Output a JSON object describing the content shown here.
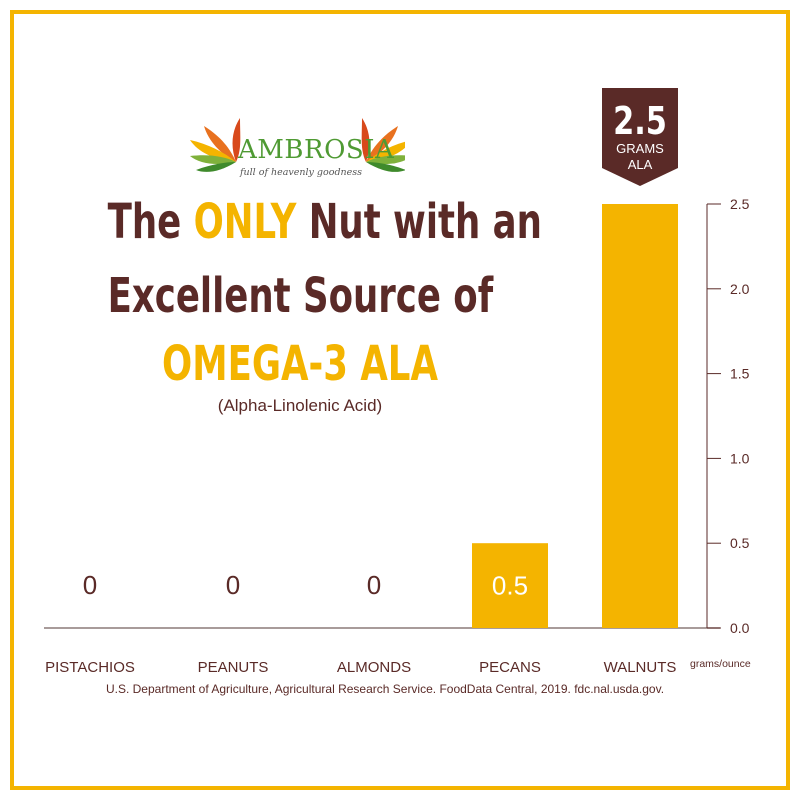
{
  "brand": {
    "name": "AMBROSIA",
    "tagline": "full of heavenly goodness"
  },
  "headline": {
    "pre": "The ",
    "highlight": "ONLY",
    "post": " Nut with an",
    "line2": "Excellent Source of",
    "line3": "OMEGA-3 ALA",
    "subtitle": "(Alpha-Linolenic Acid)"
  },
  "callout": {
    "value": "2.5",
    "line1": "GRAMS",
    "line2": "ALA"
  },
  "source": "U.S. Department of Agriculture, Agricultural Research Service. FoodData Central, 2019. fdc.nal.usda.gov.",
  "colors": {
    "brown": "#5a2a27",
    "gold": "#f4b400",
    "green": "#4f9a33",
    "white": "#ffffff"
  },
  "chart_data": {
    "type": "bar",
    "categories": [
      "PISTACHIOS",
      "PEANUTS",
      "ALMONDS",
      "PECANS",
      "WALNUTS"
    ],
    "values": [
      0,
      0,
      0,
      0.5,
      2.5
    ],
    "value_labels": [
      "0",
      "0",
      "0",
      "0.5",
      ""
    ],
    "y_ticks": [
      "2.5",
      "2.0",
      "1.5",
      "1.0",
      "0.5",
      "0.0"
    ],
    "y_tick_values": [
      2.5,
      2.0,
      1.5,
      1.0,
      0.5,
      0.0
    ],
    "unit_label": "grams/ounce",
    "ylim": [
      0,
      2.5
    ],
    "axis_side": "right",
    "grid": false
  }
}
